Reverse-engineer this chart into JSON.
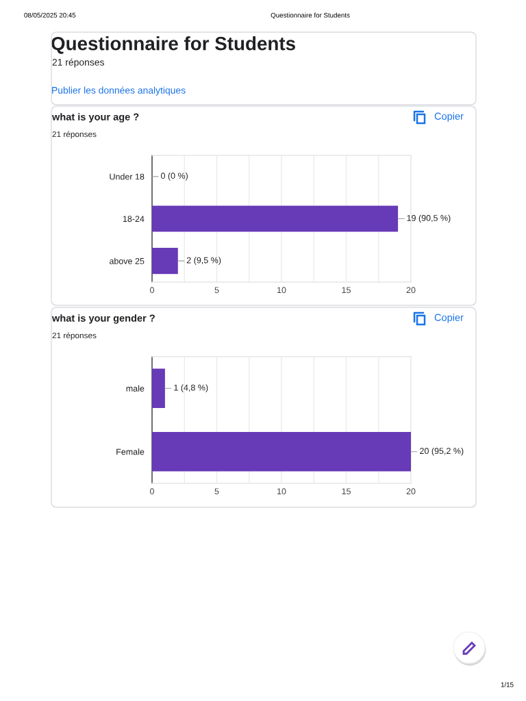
{
  "chart_data": [
    {
      "type": "other",
      "title": "Questionnaire for Students",
      "subtitle": "21 réponses",
      "annotations": [
        "08/05/2025 20:45",
        "Questionnaire for Students",
        "Publier les données analytiques",
        "1/15"
      ]
    },
    {
      "type": "bar",
      "orientation": "horizontal",
      "title": "what is your age ?",
      "subtitle": "21 réponses",
      "annotations": [
        "Copier"
      ],
      "categories": [
        "Under 18",
        "18-24",
        "above 25"
      ],
      "values": [
        0,
        19,
        2
      ],
      "value_labels": [
        "0 (0 %)",
        "19 (90,5 %)",
        "2 (9,5 %)"
      ],
      "color": "#673ab7",
      "xlim": [
        0,
        20
      ],
      "xticks": [
        0,
        {
          "value": 2.5,
          "label": null
        },
        5,
        {
          "value": 7.5,
          "label": null
        },
        10,
        {
          "value": 12.5,
          "label": null
        },
        15,
        {
          "value": 17.5,
          "label": null
        },
        20
      ],
      "grid": "x"
    },
    {
      "type": "bar",
      "orientation": "horizontal",
      "title": "what is your gender ?",
      "subtitle": "21 réponses",
      "annotations": [
        "Copier"
      ],
      "categories": [
        "male",
        "Female"
      ],
      "values": [
        1,
        20
      ],
      "value_labels": [
        "1 (4,8 %)",
        "20 (95,2 %)"
      ],
      "color": "#673ab7",
      "xlim": [
        0,
        20
      ],
      "xticks": [
        0,
        {
          "value": 2.5,
          "label": null
        },
        5,
        {
          "value": 7.5,
          "label": null
        },
        10,
        {
          "value": 12.5,
          "label": null
        },
        15,
        {
          "value": 17.5,
          "label": null
        },
        20
      ],
      "grid": "x"
    }
  ]
}
